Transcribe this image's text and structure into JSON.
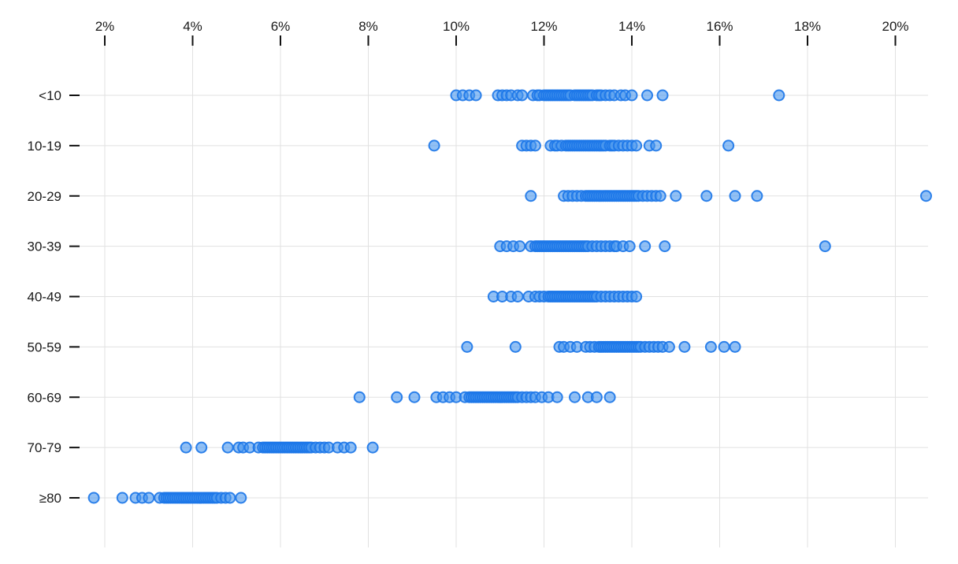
{
  "chart_data": {
    "type": "scatter",
    "variant": "strip-dot-plot",
    "title": "",
    "xlabel": "",
    "ylabel": "",
    "x_axis": {
      "position": "top",
      "unit": "%",
      "ticks": [
        2,
        4,
        6,
        8,
        10,
        12,
        14,
        16,
        18,
        20
      ],
      "tick_labels": [
        "2%",
        "4%",
        "6%",
        "8%",
        "10%",
        "12%",
        "14%",
        "16%",
        "18%",
        "20%"
      ],
      "range": [
        1.4,
        21.5
      ],
      "grid": true
    },
    "y_axis": {
      "categories": [
        "<10",
        "10-19",
        "20-29",
        "30-39",
        "40-49",
        "50-59",
        "60-69",
        "70-79",
        "≥80"
      ],
      "grid": true
    },
    "legend": null,
    "series": [
      {
        "category": "<10",
        "values": [
          10.0,
          10.15,
          10.3,
          10.45,
          10.95,
          11.05,
          11.15,
          11.25,
          11.4,
          11.5,
          11.75,
          11.85,
          11.9,
          12.0,
          12.05,
          12.1,
          12.15,
          12.2,
          12.25,
          12.3,
          12.35,
          12.4,
          12.45,
          12.5,
          12.55,
          12.6,
          12.7,
          12.75,
          12.8,
          12.85,
          12.9,
          12.95,
          13.0,
          13.05,
          13.1,
          13.2,
          13.25,
          13.3,
          13.4,
          13.5,
          13.6,
          13.75,
          13.85,
          14.0,
          14.35,
          14.7,
          17.35
        ]
      },
      {
        "category": "10-19",
        "values": [
          9.5,
          11.5,
          11.6,
          11.7,
          11.8,
          12.15,
          12.25,
          12.3,
          12.4,
          12.5,
          12.55,
          12.6,
          12.65,
          12.7,
          12.75,
          12.8,
          12.85,
          12.9,
          12.95,
          13.0,
          13.05,
          13.1,
          13.15,
          13.2,
          13.25,
          13.3,
          13.35,
          13.4,
          13.5,
          13.55,
          13.6,
          13.7,
          13.8,
          13.9,
          14.0,
          14.1,
          14.4,
          14.55,
          16.2
        ]
      },
      {
        "category": "20-29",
        "values": [
          11.7,
          12.45,
          12.55,
          12.65,
          12.75,
          12.85,
          12.95,
          13.0,
          13.05,
          13.1,
          13.15,
          13.2,
          13.25,
          13.3,
          13.35,
          13.4,
          13.45,
          13.5,
          13.55,
          13.6,
          13.65,
          13.7,
          13.75,
          13.8,
          13.85,
          13.9,
          13.95,
          14.0,
          14.05,
          14.1,
          14.15,
          14.25,
          14.35,
          14.45,
          14.55,
          14.65,
          15.0,
          15.7,
          16.35,
          16.85,
          20.7
        ]
      },
      {
        "category": "30-39",
        "values": [
          11.0,
          11.15,
          11.3,
          11.45,
          11.7,
          11.8,
          11.85,
          11.9,
          11.95,
          12.0,
          12.05,
          12.1,
          12.15,
          12.2,
          12.25,
          12.3,
          12.35,
          12.4,
          12.45,
          12.5,
          12.55,
          12.6,
          12.65,
          12.7,
          12.75,
          12.8,
          12.85,
          12.9,
          12.95,
          13.0,
          13.1,
          13.2,
          13.3,
          13.4,
          13.5,
          13.6,
          13.65,
          13.8,
          13.95,
          14.3,
          14.75,
          18.4
        ]
      },
      {
        "category": "40-49",
        "values": [
          10.85,
          11.05,
          11.25,
          11.4,
          11.65,
          11.8,
          11.9,
          12.0,
          12.1,
          12.15,
          12.2,
          12.25,
          12.3,
          12.35,
          12.4,
          12.45,
          12.5,
          12.55,
          12.6,
          12.65,
          12.7,
          12.75,
          12.8,
          12.85,
          12.9,
          12.95,
          13.0,
          13.05,
          13.1,
          13.15,
          13.2,
          13.3,
          13.4,
          13.5,
          13.6,
          13.7,
          13.8,
          13.9,
          14.0,
          14.1
        ]
      },
      {
        "category": "50-59",
        "values": [
          10.25,
          11.35,
          12.35,
          12.45,
          12.6,
          12.75,
          12.95,
          13.05,
          13.15,
          13.25,
          13.3,
          13.35,
          13.4,
          13.45,
          13.5,
          13.55,
          13.6,
          13.65,
          13.7,
          13.75,
          13.8,
          13.85,
          13.9,
          13.95,
          14.0,
          14.05,
          14.1,
          14.15,
          14.2,
          14.3,
          14.4,
          14.5,
          14.6,
          14.7,
          14.85,
          15.2,
          15.8,
          16.1,
          16.35
        ]
      },
      {
        "category": "60-69",
        "values": [
          7.8,
          8.65,
          9.05,
          9.55,
          9.7,
          9.85,
          10.0,
          10.2,
          10.3,
          10.35,
          10.4,
          10.45,
          10.5,
          10.55,
          10.6,
          10.65,
          10.7,
          10.75,
          10.8,
          10.85,
          10.9,
          10.95,
          11.0,
          11.05,
          11.1,
          11.15,
          11.2,
          11.25,
          11.3,
          11.35,
          11.4,
          11.5,
          11.6,
          11.7,
          11.8,
          11.95,
          12.1,
          12.3,
          12.7,
          13.0,
          13.2,
          13.5
        ]
      },
      {
        "category": "70-79",
        "values": [
          3.85,
          4.2,
          4.8,
          5.05,
          5.15,
          5.3,
          5.5,
          5.6,
          5.65,
          5.7,
          5.75,
          5.8,
          5.85,
          5.9,
          5.95,
          6.0,
          6.05,
          6.1,
          6.15,
          6.2,
          6.25,
          6.3,
          6.35,
          6.4,
          6.45,
          6.5,
          6.55,
          6.6,
          6.65,
          6.7,
          6.8,
          6.9,
          7.0,
          7.1,
          7.3,
          7.45,
          7.6,
          8.1
        ]
      },
      {
        "category": "≥80",
        "values": [
          1.75,
          2.4,
          2.7,
          2.85,
          3.0,
          3.25,
          3.35,
          3.4,
          3.45,
          3.5,
          3.55,
          3.6,
          3.65,
          3.7,
          3.75,
          3.8,
          3.85,
          3.9,
          3.95,
          4.0,
          4.05,
          4.1,
          4.15,
          4.2,
          4.25,
          4.3,
          4.35,
          4.4,
          4.45,
          4.5,
          4.55,
          4.65,
          4.75,
          4.85,
          5.1
        ]
      }
    ],
    "style": {
      "point_fill": "#4896ee",
      "point_fill_opacity": 0.6,
      "point_stroke": "#1b76e8",
      "point_stroke_opacity": 0.9,
      "gridline_color": "#e1e1e1",
      "axis_tick_color": "#111111",
      "label_color": "#1a1a1a",
      "background": "#ffffff"
    }
  }
}
